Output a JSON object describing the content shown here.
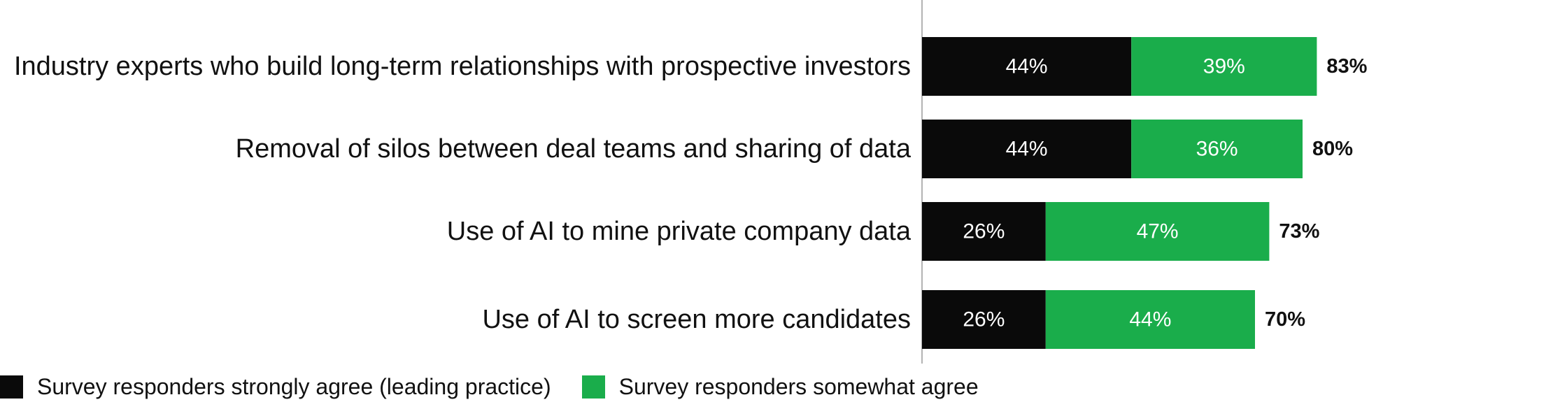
{
  "chart_data": {
    "type": "bar",
    "orientation": "horizontal",
    "stacked": true,
    "categories": [
      "Industry experts who build long-term relationships with prospective investors",
      "Removal of silos between deal teams and sharing of data",
      "Use of AI to mine private company data",
      "Use of AI to screen more candidates"
    ],
    "series": [
      {
        "name": "Survey responders strongly agree (leading practice)",
        "values": [
          44,
          44,
          26,
          26
        ],
        "labels": [
          "44%",
          "44%",
          "26%",
          "26%"
        ],
        "color": "#0a0a0a"
      },
      {
        "name": "Survey responders somewhat agree",
        "values": [
          39,
          36,
          47,
          44
        ],
        "labels": [
          "39%",
          "36%",
          "47%",
          "44%"
        ],
        "color": "#1aad4b"
      }
    ],
    "totals": [
      83,
      80,
      73,
      70
    ],
    "total_labels": [
      "83%",
      "80%",
      "73%",
      "70%"
    ],
    "xlim": [
      0,
      100
    ],
    "unit": "%",
    "grid": false,
    "legend_position": "bottom-left"
  },
  "legend": {
    "items": [
      {
        "label": "Survey responders strongly agree (leading practice)",
        "color": "#0a0a0a"
      },
      {
        "label": "Survey responders somewhat agree",
        "color": "#1aad4b"
      }
    ]
  }
}
